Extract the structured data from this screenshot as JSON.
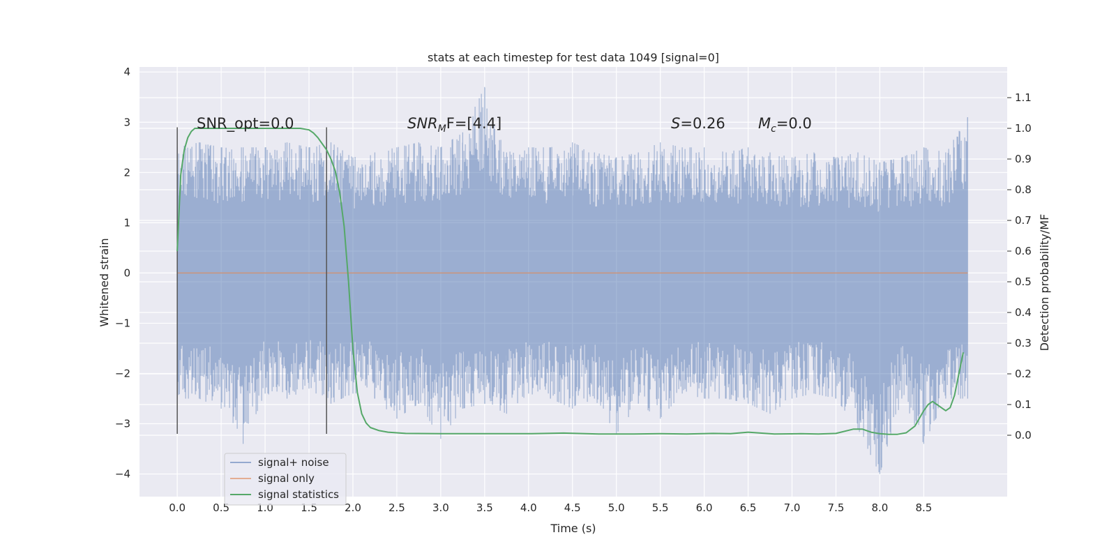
{
  "chart_data": {
    "type": "line",
    "title": "stats at each timestep for test data 1049 [signal=0]",
    "xlabel": "Time (s)",
    "ylabel": "Whitened strain",
    "ylabel_right": "Detection probability/MF",
    "xlim": [
      -0.43,
      9.45
    ],
    "ylim": [
      -4.45,
      4.1
    ],
    "ylim_right": [
      -0.2,
      1.2
    ],
    "x_ticks": [
      "0.0",
      "0.5",
      "1.0",
      "1.5",
      "2.0",
      "2.5",
      "3.0",
      "3.5",
      "4.0",
      "4.5",
      "5.0",
      "5.5",
      "6.0",
      "6.5",
      "7.0",
      "7.5",
      "8.0",
      "8.5"
    ],
    "y_ticks": [
      "−4",
      "−3",
      "−2",
      "−1",
      "0",
      "1",
      "2",
      "3",
      "4"
    ],
    "y_ticks_right": [
      "0.0",
      "0.1",
      "0.2",
      "0.3",
      "0.4",
      "0.5",
      "0.6",
      "0.7",
      "0.8",
      "0.9",
      "1.0",
      "1.1"
    ],
    "grid": true,
    "legend_position": "lower-left",
    "annotations": {
      "snr_opt": "SNR_opt=0.0",
      "snr_mf_main": "SNR",
      "snr_mf_sub": "M",
      "snr_mf_rest": "F=[4.4]",
      "s_main": "S",
      "s_rest": "=0.26",
      "mc_main": "M",
      "mc_sub": "c",
      "mc_rest": "=0.0"
    },
    "vlines": [
      {
        "x": 0.0,
        "ymin": -3.2,
        "ymax": 2.9
      },
      {
        "x": 1.7,
        "ymin": -3.2,
        "ymax": 2.9
      }
    ],
    "series": [
      {
        "name": "signal+ noise",
        "color": "#4c72b0",
        "note_x_range": [
          0.0,
          9.0
        ],
        "envelope_x": [
          0.0,
          0.25,
          0.5,
          0.75,
          1.0,
          1.25,
          1.5,
          1.75,
          2.0,
          2.25,
          2.5,
          2.75,
          3.0,
          3.25,
          3.5,
          3.75,
          4.0,
          4.25,
          4.5,
          4.75,
          5.0,
          5.25,
          5.5,
          5.75,
          6.0,
          6.25,
          6.5,
          6.75,
          7.0,
          7.25,
          7.5,
          7.75,
          8.0,
          8.25,
          8.5,
          8.75,
          9.0
        ],
        "upper_y": [
          2.5,
          2.6,
          2.5,
          2.5,
          2.5,
          2.6,
          2.5,
          2.6,
          2.3,
          2.4,
          2.5,
          2.6,
          2.5,
          2.8,
          3.7,
          2.4,
          2.5,
          2.5,
          2.6,
          2.4,
          2.3,
          2.4,
          2.6,
          2.5,
          2.5,
          2.4,
          2.5,
          2.4,
          2.3,
          2.4,
          2.3,
          2.4,
          2.2,
          2.3,
          2.5,
          2.4,
          3.1
        ],
        "lower_y": [
          -2.5,
          -2.5,
          -2.7,
          -3.4,
          -2.4,
          -2.5,
          -2.3,
          -2.6,
          -2.4,
          -2.5,
          -2.9,
          -2.6,
          -3.3,
          -2.7,
          -2.6,
          -2.8,
          -2.4,
          -2.5,
          -2.7,
          -2.5,
          -3.2,
          -2.6,
          -2.9,
          -2.4,
          -2.5,
          -2.5,
          -2.6,
          -2.8,
          -2.5,
          -2.4,
          -2.5,
          -3.1,
          -4.0,
          -2.5,
          -3.4,
          -2.5,
          -2.5
        ]
      },
      {
        "name": "signal only",
        "color": "#dd8452",
        "x": [
          0.0,
          9.0
        ],
        "y": [
          0.0,
          0.0
        ]
      },
      {
        "name": "signal statistics",
        "color": "#55a868",
        "axis": "right",
        "x": [
          0.0,
          0.04,
          0.08,
          0.12,
          0.16,
          0.2,
          0.3,
          0.4,
          0.6,
          0.8,
          1.0,
          1.2,
          1.3,
          1.4,
          1.5,
          1.55,
          1.6,
          1.65,
          1.7,
          1.75,
          1.8,
          1.85,
          1.9,
          1.95,
          2.0,
          2.05,
          2.1,
          2.15,
          2.2,
          2.3,
          2.4,
          2.6,
          3.0,
          3.5,
          4.0,
          4.4,
          4.8,
          5.2,
          5.5,
          5.8,
          6.1,
          6.3,
          6.5,
          6.8,
          7.1,
          7.3,
          7.5,
          7.7,
          7.8,
          7.9,
          8.0,
          8.1,
          8.2,
          8.3,
          8.4,
          8.5,
          8.55,
          8.6,
          8.65,
          8.7,
          8.75,
          8.8,
          8.85,
          8.9,
          8.95
        ],
        "y": [
          0.6,
          0.85,
          0.93,
          0.97,
          0.99,
          1.0,
          1.0,
          1.0,
          1.0,
          1.0,
          1.0,
          1.0,
          1.0,
          1.0,
          0.995,
          0.985,
          0.97,
          0.95,
          0.93,
          0.9,
          0.86,
          0.79,
          0.68,
          0.5,
          0.28,
          0.14,
          0.07,
          0.04,
          0.025,
          0.015,
          0.01,
          0.006,
          0.005,
          0.005,
          0.005,
          0.007,
          0.004,
          0.004,
          0.005,
          0.004,
          0.006,
          0.005,
          0.01,
          0.004,
          0.005,
          0.004,
          0.006,
          0.02,
          0.02,
          0.01,
          0.005,
          0.003,
          0.003,
          0.008,
          0.03,
          0.08,
          0.1,
          0.11,
          0.1,
          0.09,
          0.08,
          0.09,
          0.13,
          0.2,
          0.27
        ]
      }
    ]
  }
}
